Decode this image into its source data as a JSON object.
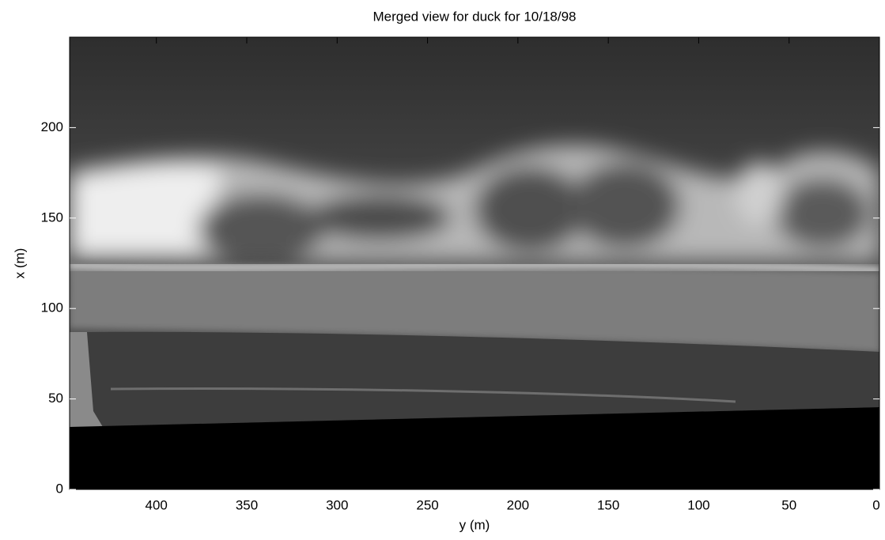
{
  "chart_data": {
    "type": "image",
    "title": "Merged view for duck for 10/18/98",
    "x_label": "y (m)",
    "y_label": "x (m)",
    "xlim": [
      448,
      0
    ],
    "xticks": [
      400,
      350,
      300,
      250,
      200,
      150,
      100,
      50,
      0
    ],
    "ylim": [
      0,
      250
    ],
    "yticks": [
      0,
      50,
      100,
      150,
      200
    ]
  }
}
